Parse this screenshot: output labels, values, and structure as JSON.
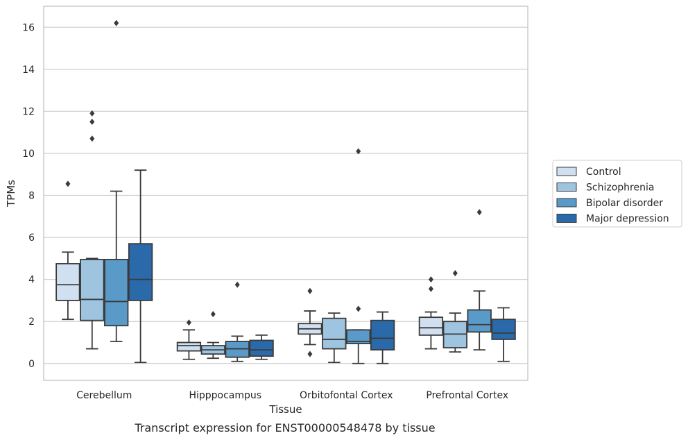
{
  "caption": "Transcript expression for ENST00000548478 by tissue",
  "chart_data": {
    "type": "box",
    "xlabel": "Tissue",
    "ylabel": "TPMs",
    "ylim": [
      -0.8,
      17
    ],
    "yticks": [
      0,
      2,
      4,
      6,
      8,
      10,
      12,
      14,
      16
    ],
    "grid": true,
    "legend_position": "right",
    "categories": [
      "Cerebellum",
      "Hipppocampus",
      "Orbitofontal Cortex",
      "Prefrontal Cortex"
    ],
    "series": [
      {
        "name": "Control",
        "color": "#d0e0f0",
        "boxes": [
          {
            "whisker_low": 2.1,
            "q1": 3.0,
            "median": 3.75,
            "q3": 4.75,
            "whisker_high": 5.3,
            "outliers": [
              8.55
            ]
          },
          {
            "whisker_low": 0.2,
            "q1": 0.6,
            "median": 0.85,
            "q3": 1.0,
            "whisker_high": 1.6,
            "outliers": [
              1.95
            ]
          },
          {
            "whisker_low": 0.9,
            "q1": 1.4,
            "median": 1.65,
            "q3": 1.9,
            "whisker_high": 2.5,
            "outliers": [
              0.45,
              3.45
            ]
          },
          {
            "whisker_low": 0.7,
            "q1": 1.35,
            "median": 1.7,
            "q3": 2.2,
            "whisker_high": 2.45,
            "outliers": [
              3.55,
              4.0
            ]
          }
        ]
      },
      {
        "name": "Schizophrenia",
        "color": "#9ec4e0",
        "boxes": [
          {
            "whisker_low": 0.7,
            "q1": 2.05,
            "median": 3.05,
            "q3": 4.95,
            "whisker_high": 5.0,
            "outliers": [
              10.7,
              11.5,
              11.9
            ]
          },
          {
            "whisker_low": 0.25,
            "q1": 0.45,
            "median": 0.65,
            "q3": 0.85,
            "whisker_high": 1.0,
            "outliers": [
              2.35
            ]
          },
          {
            "whisker_low": 0.05,
            "q1": 0.7,
            "median": 1.15,
            "q3": 2.15,
            "whisker_high": 2.4,
            "outliers": []
          },
          {
            "whisker_low": 0.55,
            "q1": 0.75,
            "median": 1.4,
            "q3": 2.0,
            "whisker_high": 2.4,
            "outliers": [
              4.3
            ]
          }
        ]
      },
      {
        "name": "Bipolar disorder",
        "color": "#5a9ac8",
        "boxes": [
          {
            "whisker_low": 1.05,
            "q1": 1.8,
            "median": 2.95,
            "q3": 4.95,
            "whisker_high": 8.2,
            "outliers": [
              16.2
            ]
          },
          {
            "whisker_low": 0.1,
            "q1": 0.3,
            "median": 0.7,
            "q3": 1.05,
            "whisker_high": 1.3,
            "outliers": [
              3.75
            ]
          },
          {
            "whisker_low": 0.0,
            "q1": 0.95,
            "median": 1.05,
            "q3": 1.6,
            "whisker_high": 1.6,
            "outliers": [
              2.6,
              10.1
            ]
          },
          {
            "whisker_low": 0.65,
            "q1": 1.5,
            "median": 1.85,
            "q3": 2.55,
            "whisker_high": 3.45,
            "outliers": [
              7.2
            ]
          }
        ]
      },
      {
        "name": "Major depression",
        "color": "#2a6aaa",
        "boxes": [
          {
            "whisker_low": 0.05,
            "q1": 3.0,
            "median": 4.0,
            "q3": 5.7,
            "whisker_high": 9.2,
            "outliers": []
          },
          {
            "whisker_low": 0.2,
            "q1": 0.35,
            "median": 0.65,
            "q3": 1.1,
            "whisker_high": 1.35,
            "outliers": []
          },
          {
            "whisker_low": 0.0,
            "q1": 0.65,
            "median": 1.2,
            "q3": 2.05,
            "whisker_high": 2.45,
            "outliers": []
          },
          {
            "whisker_low": 0.1,
            "q1": 1.15,
            "median": 1.45,
            "q3": 2.1,
            "whisker_high": 2.65,
            "outliers": []
          }
        ]
      }
    ]
  }
}
